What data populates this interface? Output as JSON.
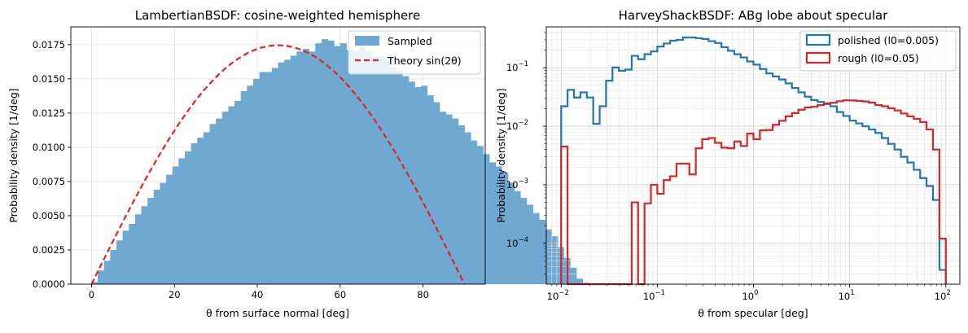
{
  "chart_data": [
    {
      "type": "histogram",
      "title": "LambertianBSDF: cosine-weighted hemisphere",
      "xlabel": "θ from surface normal [deg]",
      "ylabel": "Probability density [1/deg]",
      "xlim": [
        -5,
        95
      ],
      "ylim": [
        0,
        0.0188
      ],
      "xticks": [
        0,
        20,
        40,
        60,
        80
      ],
      "xtick_labels": [
        "0",
        "20",
        "40",
        "60",
        "80"
      ],
      "yticks": [
        0,
        0.0025,
        0.005,
        0.0075,
        0.01,
        0.0125,
        0.015,
        0.0175
      ],
      "ytick_labels": [
        "0.0000",
        "0.0025",
        "0.0050",
        "0.0075",
        "0.0100",
        "0.0125",
        "0.0150",
        "0.0175"
      ],
      "grid": true,
      "legend_position": "top-right",
      "bin_width": 1.5,
      "series": [
        {
          "name": "Sampled",
          "kind": "filled-histogram",
          "color": "#6fa8d1",
          "values": [
            0.00015,
            0.001,
            0.0017,
            0.0025,
            0.0032,
            0.0039,
            0.0044,
            0.0051,
            0.0057,
            0.0063,
            0.0069,
            0.0074,
            0.008,
            0.0086,
            0.0092,
            0.0097,
            0.0103,
            0.0107,
            0.0111,
            0.0117,
            0.0121,
            0.0126,
            0.013,
            0.0134,
            0.0141,
            0.0145,
            0.015,
            0.0155,
            0.0155,
            0.0158,
            0.0162,
            0.0164,
            0.0167,
            0.017,
            0.0172,
            0.017,
            0.0176,
            0.0179,
            0.0178,
            0.0174,
            0.0176,
            0.0171,
            0.017,
            0.0173,
            0.0171,
            0.0166,
            0.0167,
            0.0163,
            0.0158,
            0.0156,
            0.0152,
            0.0148,
            0.0144,
            0.0145,
            0.0138,
            0.0133,
            0.0126,
            0.0124,
            0.0121,
            0.0116,
            0.0111,
            0.0105,
            0.0101,
            0.0095,
            0.0089,
            0.0086,
            0.0081,
            0.0074,
            0.0068,
            0.0063,
            0.0058,
            0.0052,
            0.0047,
            0.004,
            0.0035,
            0.0027,
            0.0019,
            0.0012,
            0.0004,
            0.0001
          ]
        },
        {
          "name": "Theory  sin(2θ)",
          "kind": "dashed-curve",
          "color": "#e6221b",
          "formula": "pi/180 * sin(2*theta)",
          "x_range": [
            0,
            90
          ]
        }
      ]
    },
    {
      "type": "histogram",
      "title": "HarveyShackBSDF: ABg lobe about specular",
      "xlabel": "θ from specular [deg]",
      "ylabel": "Probability density [1/deg]",
      "xscale": "log",
      "yscale": "log",
      "xlim": [
        0.007,
        140
      ],
      "ylim": [
        2e-05,
        0.5
      ],
      "xtick_labels": [
        {
          "base": "10",
          "exp": "−2"
        },
        {
          "base": "10",
          "exp": "−1"
        },
        {
          "base": "10",
          "exp": "0"
        },
        {
          "base": "10",
          "exp": "1"
        },
        {
          "base": "10",
          "exp": "2"
        }
      ],
      "ytick_labels": [
        {
          "base": "10",
          "exp": "−4"
        },
        {
          "base": "10",
          "exp": "−3"
        },
        {
          "base": "10",
          "exp": "−2"
        },
        {
          "base": "10",
          "exp": "−1"
        }
      ],
      "grid": true,
      "legend_position": "top-right",
      "bin_log_range": [
        -2,
        2
      ],
      "bin_count": 60,
      "series": [
        {
          "name": "polished (l0=0.005)",
          "kind": "step-histogram",
          "color": "#1f77b4",
          "values": [
            0.022,
            0.042,
            0.031,
            0.038,
            0.031,
            0.011,
            0.022,
            0.06,
            0.101,
            0.089,
            0.093,
            0.16,
            0.14,
            0.17,
            0.19,
            0.23,
            0.26,
            0.29,
            0.3,
            0.33,
            0.33,
            0.32,
            0.31,
            0.285,
            0.265,
            0.225,
            0.195,
            0.17,
            0.15,
            0.128,
            0.113,
            0.095,
            0.08,
            0.071,
            0.063,
            0.054,
            0.045,
            0.038,
            0.032,
            0.028,
            0.026,
            0.024,
            0.022,
            0.0175,
            0.015,
            0.0125,
            0.0112,
            0.01,
            0.0088,
            0.0077,
            0.0063,
            0.005,
            0.004,
            0.003,
            0.0024,
            0.0018,
            0.0013,
            0.00095,
            0.00055,
            3.5e-05
          ]
        },
        {
          "name": "rough (l0=0.05)",
          "kind": "step-histogram",
          "color": "#d62728",
          "values": [
            0.0045,
            0,
            0,
            0,
            0,
            0,
            0,
            0,
            0,
            0,
            0,
            0.0005,
            0,
            0.00048,
            0.001,
            0.0007,
            0.0012,
            0.0014,
            0.0023,
            0.0023,
            0.0015,
            0.0042,
            0.006,
            0.0063,
            0.0052,
            0.0043,
            0.0042,
            0.0055,
            0.0046,
            0.0075,
            0.006,
            0.0085,
            0.0086,
            0.0106,
            0.0124,
            0.0148,
            0.0168,
            0.0192,
            0.021,
            0.0215,
            0.023,
            0.0245,
            0.0252,
            0.0268,
            0.0278,
            0.0276,
            0.0271,
            0.0265,
            0.0253,
            0.023,
            0.022,
            0.0203,
            0.0186,
            0.0165,
            0.0148,
            0.0134,
            0.0118,
            0.0088,
            0.004,
            0.00012
          ]
        }
      ]
    }
  ]
}
